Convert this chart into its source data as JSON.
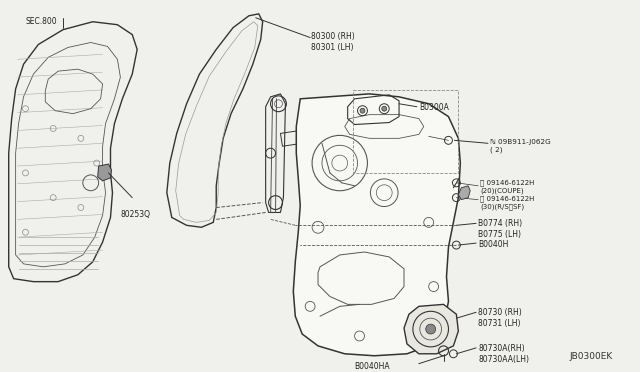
{
  "bg_color": "#f0f0ec",
  "line_color": "#555555",
  "dark_line": "#333333",
  "title_diagram_id": "JB0300EK",
  "labels": {
    "sec800": "SEC.800",
    "part_80253Q": "80253Q",
    "part_80300": "80300 (RH)\n80301 (LH)",
    "part_80300A": "B0300A",
    "part_09B911": "ℕ 09B911-J062G\n( 2)",
    "part_09146_coupe": "Ⓒ 09146-6122H\n(20)(COUPE)",
    "part_09146_rs": "Ⓒ 09146-6122H\n(30)(R/S⧹SF)",
    "part_80774": "B0774 (RH)\nB0775 (LH)",
    "part_B0040H": "B0040H",
    "part_80730": "80730 (RH)\n80731 (LH)",
    "part_80040HA": "B0040HA",
    "part_80730A": "80730A(RH)\n80730AA(LH)"
  }
}
